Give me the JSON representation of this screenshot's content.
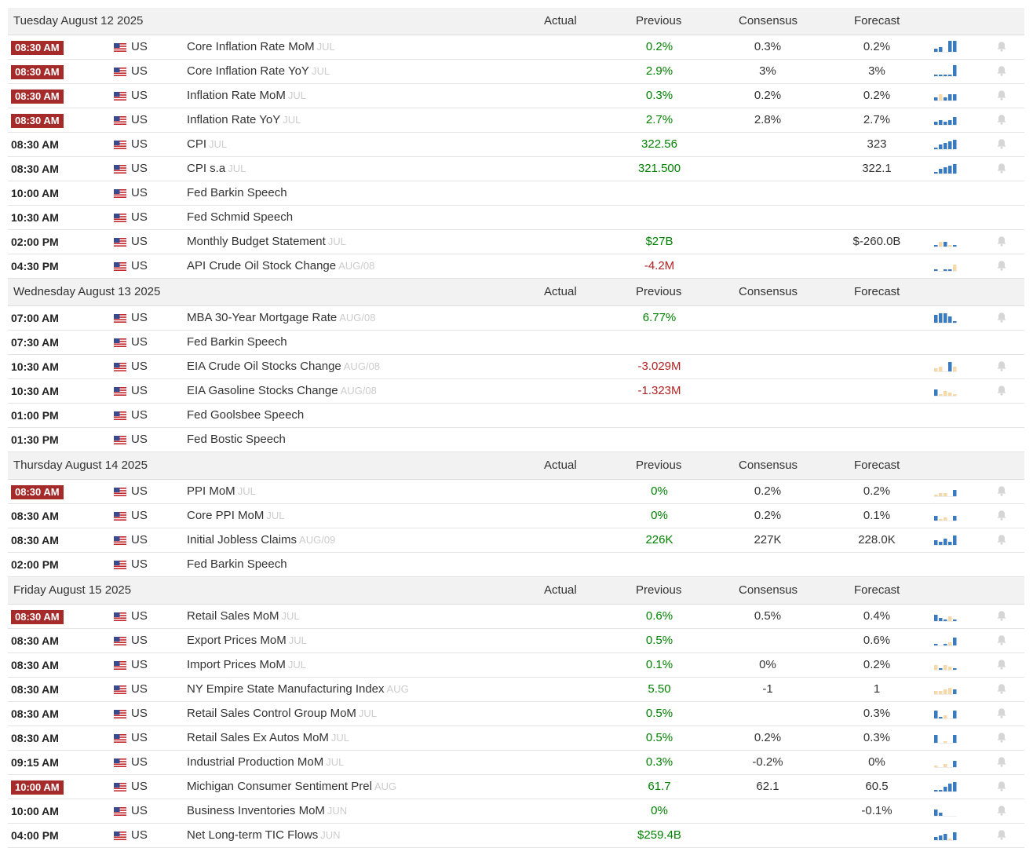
{
  "columns": {
    "actual": "Actual",
    "previous": "Previous",
    "consensus": "Consensus",
    "forecast": "Forecast"
  },
  "colors": {
    "time_highlight": "#a52a2a",
    "positive": "#008000",
    "negative": "#b22222",
    "spark_blue": "#3a7abf",
    "spark_tan": "#f5d9a8",
    "bell": "#d6d6d6"
  },
  "days": [
    {
      "date": "Tuesday August 12 2025",
      "events": [
        {
          "time": "08:30 AM",
          "hl": true,
          "country": "US",
          "event": "Core Inflation Rate MoM",
          "ref": "JUL",
          "previous": "0.2%",
          "prev_dir": "up",
          "consensus": "0.3%",
          "forecast": "0.2%",
          "spark": [
            2,
            3,
            0,
            7,
            7
          ],
          "spark_neg": [
            false,
            false,
            false,
            false,
            false
          ],
          "alert": true
        },
        {
          "time": "08:30 AM",
          "hl": true,
          "country": "US",
          "event": "Core Inflation Rate YoY",
          "ref": "JUL",
          "previous": "2.9%",
          "prev_dir": "up",
          "consensus": "3%",
          "forecast": "3%",
          "spark": [
            1,
            1,
            1,
            1,
            7
          ],
          "spark_neg": [
            false,
            false,
            false,
            false,
            false
          ],
          "alert": true
        },
        {
          "time": "08:30 AM",
          "hl": true,
          "country": "US",
          "event": "Inflation Rate MoM",
          "ref": "JUL",
          "previous": "0.3%",
          "prev_dir": "up",
          "consensus": "0.2%",
          "forecast": "0.2%",
          "spark": [
            2,
            4,
            2,
            4,
            4
          ],
          "spark_neg": [
            false,
            true,
            false,
            false,
            false
          ],
          "alert": true
        },
        {
          "time": "08:30 AM",
          "hl": true,
          "country": "US",
          "event": "Inflation Rate YoY",
          "ref": "JUL",
          "previous": "2.7%",
          "prev_dir": "up",
          "consensus": "2.8%",
          "forecast": "2.7%",
          "spark": [
            2,
            3,
            2,
            3,
            5
          ],
          "spark_neg": [
            false,
            false,
            false,
            false,
            false
          ],
          "alert": true
        },
        {
          "time": "08:30 AM",
          "hl": false,
          "country": "US",
          "event": "CPI",
          "ref": "JUL",
          "previous": "322.56",
          "prev_dir": "up",
          "consensus": "",
          "forecast": "323",
          "spark": [
            1,
            3,
            4,
            5,
            6
          ],
          "spark_neg": [
            false,
            false,
            false,
            false,
            false
          ],
          "alert": true
        },
        {
          "time": "08:30 AM",
          "hl": false,
          "country": "US",
          "event": "CPI s.a",
          "ref": "JUL",
          "previous": "321.500",
          "prev_dir": "up",
          "consensus": "",
          "forecast": "322.1",
          "spark": [
            1,
            3,
            4,
            5,
            6
          ],
          "spark_neg": [
            false,
            false,
            false,
            false,
            false
          ],
          "alert": true
        },
        {
          "time": "10:00 AM",
          "hl": false,
          "country": "US",
          "event": "Fed Barkin Speech",
          "ref": "",
          "previous": "",
          "prev_dir": "",
          "consensus": "",
          "forecast": "",
          "spark": [],
          "spark_neg": [],
          "alert": false
        },
        {
          "time": "10:30 AM",
          "hl": false,
          "country": "US",
          "event": "Fed Schmid Speech",
          "ref": "",
          "previous": "",
          "prev_dir": "",
          "consensus": "",
          "forecast": "",
          "spark": [],
          "spark_neg": [],
          "alert": false
        },
        {
          "time": "02:00 PM",
          "hl": false,
          "country": "US",
          "event": "Monthly Budget Statement",
          "ref": "JUL",
          "previous": "$27B",
          "prev_dir": "up",
          "consensus": "",
          "forecast": "$-260.0B",
          "spark": [
            1,
            3,
            3,
            1,
            1
          ],
          "spark_neg": [
            false,
            true,
            false,
            true,
            false
          ],
          "alert": true
        },
        {
          "time": "04:30 PM",
          "hl": false,
          "country": "US",
          "event": "API Crude Oil Stock Change",
          "ref": "AUG/08",
          "previous": "-4.2M",
          "prev_dir": "down",
          "consensus": "",
          "forecast": "",
          "spark": [
            1,
            0,
            1,
            1,
            4
          ],
          "spark_neg": [
            false,
            false,
            false,
            false,
            true
          ],
          "alert": true
        }
      ]
    },
    {
      "date": "Wednesday August 13 2025",
      "events": [
        {
          "time": "07:00 AM",
          "hl": false,
          "country": "US",
          "event": "MBA 30-Year Mortgage Rate",
          "ref": "AUG/08",
          "previous": "6.77%",
          "prev_dir": "up",
          "consensus": "",
          "forecast": "",
          "spark": [
            5,
            6,
            6,
            4,
            1
          ],
          "spark_neg": [
            false,
            false,
            false,
            false,
            false
          ],
          "alert": true
        },
        {
          "time": "07:30 AM",
          "hl": false,
          "country": "US",
          "event": "Fed Barkin Speech",
          "ref": "",
          "previous": "",
          "prev_dir": "",
          "consensus": "",
          "forecast": "",
          "spark": [],
          "spark_neg": [],
          "alert": false
        },
        {
          "time": "10:30 AM",
          "hl": false,
          "country": "US",
          "event": "EIA Crude Oil Stocks Change",
          "ref": "AUG/08",
          "previous": "-3.029M",
          "prev_dir": "down",
          "consensus": "",
          "forecast": "",
          "spark": [
            2,
            3,
            0,
            6,
            3
          ],
          "spark_neg": [
            true,
            true,
            false,
            false,
            true
          ],
          "alert": true
        },
        {
          "time": "10:30 AM",
          "hl": false,
          "country": "US",
          "event": "EIA Gasoline Stocks Change",
          "ref": "AUG/08",
          "previous": "-1.323M",
          "prev_dir": "down",
          "consensus": "",
          "forecast": "",
          "spark": [
            4,
            1,
            3,
            2,
            1
          ],
          "spark_neg": [
            false,
            true,
            true,
            true,
            true
          ],
          "alert": true
        },
        {
          "time": "01:00 PM",
          "hl": false,
          "country": "US",
          "event": "Fed Goolsbee Speech",
          "ref": "",
          "previous": "",
          "prev_dir": "",
          "consensus": "",
          "forecast": "",
          "spark": [],
          "spark_neg": [],
          "alert": false
        },
        {
          "time": "01:30 PM",
          "hl": false,
          "country": "US",
          "event": "Fed Bostic Speech",
          "ref": "",
          "previous": "",
          "prev_dir": "",
          "consensus": "",
          "forecast": "",
          "spark": [],
          "spark_neg": [],
          "alert": false
        }
      ]
    },
    {
      "date": "Thursday August 14 2025",
      "events": [
        {
          "time": "08:30 AM",
          "hl": true,
          "country": "US",
          "event": "PPI MoM",
          "ref": "JUL",
          "previous": "0%",
          "prev_dir": "up",
          "consensus": "0.2%",
          "forecast": "0.2%",
          "spark": [
            1,
            2,
            2,
            0,
            4
          ],
          "spark_neg": [
            true,
            true,
            true,
            false,
            false
          ],
          "alert": true
        },
        {
          "time": "08:30 AM",
          "hl": false,
          "country": "US",
          "event": "Core PPI MoM",
          "ref": "JUL",
          "previous": "0%",
          "prev_dir": "up",
          "consensus": "0.2%",
          "forecast": "0.1%",
          "spark": [
            3,
            1,
            2,
            0,
            3
          ],
          "spark_neg": [
            false,
            true,
            true,
            false,
            false
          ],
          "alert": true
        },
        {
          "time": "08:30 AM",
          "hl": false,
          "country": "US",
          "event": "Initial Jobless Claims",
          "ref": "AUG/09",
          "previous": "226K",
          "prev_dir": "up",
          "consensus": "227K",
          "forecast": "228.0K",
          "spark": [
            3,
            2,
            4,
            2,
            6
          ],
          "spark_neg": [
            false,
            false,
            false,
            false,
            false
          ],
          "alert": true
        },
        {
          "time": "02:00 PM",
          "hl": false,
          "country": "US",
          "event": "Fed Barkin Speech",
          "ref": "",
          "previous": "",
          "prev_dir": "",
          "consensus": "",
          "forecast": "",
          "spark": [],
          "spark_neg": [],
          "alert": false
        }
      ]
    },
    {
      "date": "Friday August 15 2025",
      "events": [
        {
          "time": "08:30 AM",
          "hl": true,
          "country": "US",
          "event": "Retail Sales MoM",
          "ref": "JUL",
          "previous": "0.6%",
          "prev_dir": "up",
          "consensus": "0.5%",
          "forecast": "0.4%",
          "spark": [
            4,
            2,
            1,
            3,
            1
          ],
          "spark_neg": [
            false,
            false,
            false,
            true,
            false
          ],
          "alert": true
        },
        {
          "time": "08:30 AM",
          "hl": false,
          "country": "US",
          "event": "Export Prices MoM",
          "ref": "JUL",
          "previous": "0.5%",
          "prev_dir": "up",
          "consensus": "",
          "forecast": "0.6%",
          "spark": [
            1,
            0,
            1,
            2,
            5
          ],
          "spark_neg": [
            false,
            false,
            false,
            true,
            false
          ],
          "alert": true
        },
        {
          "time": "08:30 AM",
          "hl": false,
          "country": "US",
          "event": "Import Prices MoM",
          "ref": "JUL",
          "previous": "0.1%",
          "prev_dir": "up",
          "consensus": "0%",
          "forecast": "0.2%",
          "spark": [
            3,
            1,
            3,
            2,
            1
          ],
          "spark_neg": [
            true,
            false,
            true,
            true,
            false
          ],
          "alert": true
        },
        {
          "time": "08:30 AM",
          "hl": false,
          "country": "US",
          "event": "NY Empire State Manufacturing Index",
          "ref": "AUG",
          "previous": "5.50",
          "prev_dir": "up",
          "consensus": "-1",
          "forecast": "1",
          "spark": [
            2,
            2,
            3,
            4,
            3
          ],
          "spark_neg": [
            true,
            true,
            true,
            true,
            false
          ],
          "alert": true
        },
        {
          "time": "08:30 AM",
          "hl": false,
          "country": "US",
          "event": "Retail Sales Control Group MoM",
          "ref": "JUL",
          "previous": "0.5%",
          "prev_dir": "up",
          "consensus": "",
          "forecast": "0.3%",
          "spark": [
            5,
            1,
            2,
            0,
            5
          ],
          "spark_neg": [
            false,
            false,
            true,
            false,
            false
          ],
          "alert": true
        },
        {
          "time": "08:30 AM",
          "hl": false,
          "country": "US",
          "event": "Retail Sales Ex Autos MoM",
          "ref": "JUL",
          "previous": "0.5%",
          "prev_dir": "up",
          "consensus": "0.2%",
          "forecast": "0.3%",
          "spark": [
            5,
            0,
            1,
            0,
            5
          ],
          "spark_neg": [
            false,
            false,
            true,
            false,
            false
          ],
          "alert": true
        },
        {
          "time": "09:15 AM",
          "hl": false,
          "country": "US",
          "event": "Industrial Production MoM",
          "ref": "JUL",
          "previous": "0.3%",
          "prev_dir": "up",
          "consensus": "-0.2%",
          "forecast": "0%",
          "spark": [
            1,
            0,
            2,
            0,
            4
          ],
          "spark_neg": [
            true,
            false,
            true,
            false,
            false
          ],
          "alert": true
        },
        {
          "time": "10:00 AM",
          "hl": true,
          "country": "US",
          "event": "Michigan Consumer Sentiment Prel",
          "ref": "AUG",
          "previous": "61.7",
          "prev_dir": "up",
          "consensus": "62.1",
          "forecast": "60.5",
          "spark": [
            1,
            1,
            3,
            5,
            6
          ],
          "spark_neg": [
            false,
            false,
            false,
            false,
            false
          ],
          "alert": true
        },
        {
          "time": "10:00 AM",
          "hl": false,
          "country": "US",
          "event": "Business Inventories MoM",
          "ref": "JUN",
          "previous": "0%",
          "prev_dir": "up",
          "consensus": "",
          "forecast": "-0.1%",
          "spark": [
            4,
            2,
            0,
            0,
            0
          ],
          "spark_neg": [
            false,
            false,
            false,
            false,
            false
          ],
          "alert": true
        },
        {
          "time": "04:00 PM",
          "hl": false,
          "country": "US",
          "event": "Net Long-term TIC Flows",
          "ref": "JUN",
          "previous": "$259.4B",
          "prev_dir": "up",
          "consensus": "",
          "forecast": "",
          "spark": [
            2,
            3,
            4,
            1,
            5
          ],
          "spark_neg": [
            false,
            false,
            false,
            true,
            false
          ],
          "alert": true
        }
      ]
    }
  ]
}
